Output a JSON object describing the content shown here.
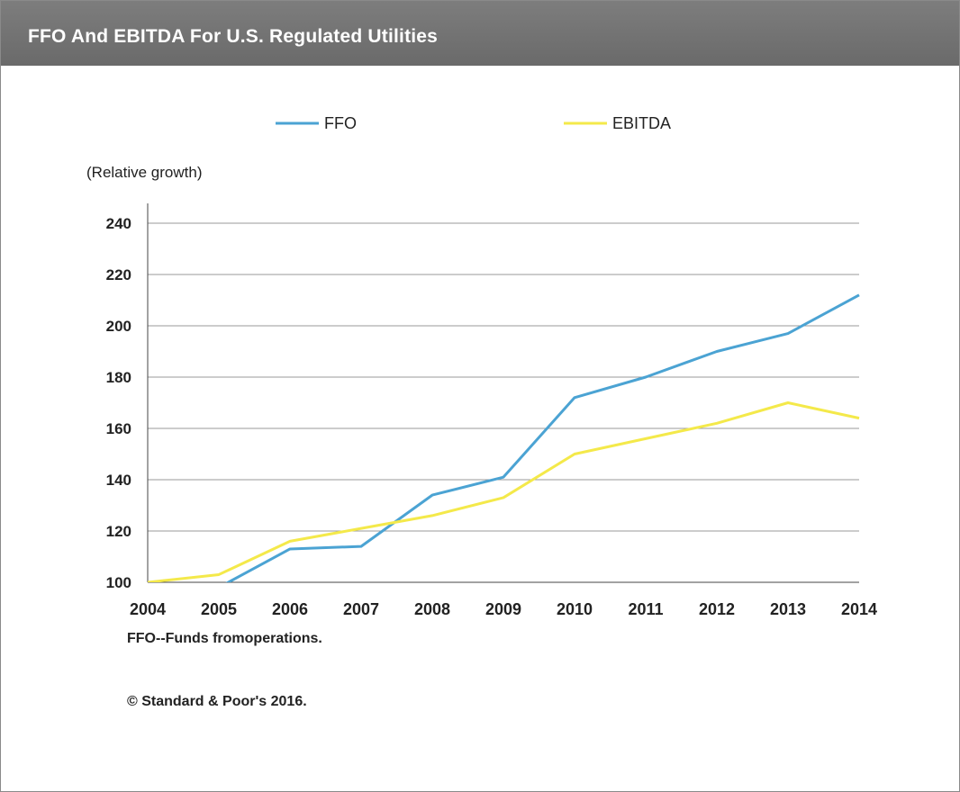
{
  "header": {
    "title": "FFO And EBITDA For U.S. Regulated Utilities"
  },
  "chart_data": {
    "type": "line",
    "title": "FFO And EBITDA For U.S. Regulated Utilities",
    "ylabel": "(Relative growth)",
    "xlabel": "",
    "x": [
      "2004",
      "2005",
      "2006",
      "2007",
      "2008",
      "2009",
      "2010",
      "2011",
      "2012",
      "2013",
      "2014"
    ],
    "ylim": [
      100,
      240
    ],
    "yticks": [
      "100",
      "120",
      "140",
      "160",
      "180",
      "200",
      "220",
      "240"
    ],
    "grid": true,
    "legend_position": "top",
    "series": [
      {
        "name": "FFO",
        "color": "#4ba3d3",
        "values": [
          99,
          98,
          113,
          114,
          134,
          141,
          172,
          180,
          190,
          197,
          212
        ]
      },
      {
        "name": "EBITDA",
        "color": "#f4e94a",
        "values": [
          100,
          103,
          116,
          121,
          126,
          133,
          150,
          156,
          162,
          170,
          164
        ]
      }
    ]
  },
  "footnote": "FFO--Funds fromoperations.",
  "copyright": "© Standard & Poor's 2016."
}
